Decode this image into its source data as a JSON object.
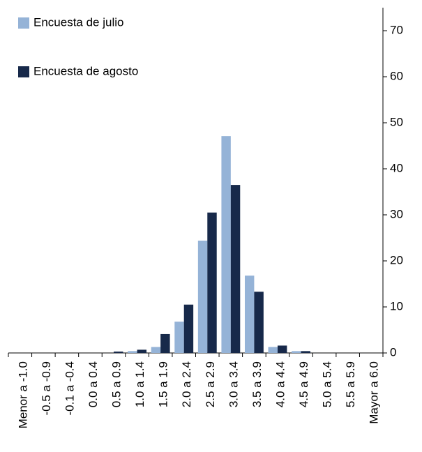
{
  "chart_data": {
    "type": "bar",
    "categories": [
      "Menor a -1.0",
      "-0.5 a -0.9",
      "-0.1 a -0.4",
      "0.0 a 0.4",
      "0.5 a 0.9",
      "1.0 a 1.4",
      "1.5 a 1.9",
      "2.0 a 2.4",
      "2.5 a 2.9",
      "3.0 a 3.4",
      "3.5 a 3.9",
      "4.0 a 4.4",
      "4.5 a 4.9",
      "5.0 a 5.4",
      "5.5 a 5.9",
      "Mayor a 6.0"
    ],
    "series": [
      {
        "name": "Encuesta de julio",
        "color": "#95b3d7",
        "values": [
          0,
          0,
          0,
          0,
          0,
          0.4,
          1.3,
          6.8,
          24.4,
          47.1,
          16.8,
          1.3,
          0.4,
          0,
          0,
          0
        ]
      },
      {
        "name": "Encuesta de agosto",
        "color": "#17294a",
        "values": [
          0,
          0,
          0,
          0,
          0.3,
          0.7,
          4.1,
          10.5,
          30.5,
          36.5,
          13.3,
          1.6,
          0.4,
          0,
          0,
          0
        ]
      }
    ],
    "ylim": [
      0,
      75
    ],
    "yticks": [
      0,
      10,
      20,
      30,
      40,
      50,
      60,
      70
    ],
    "y_axis_side": "right",
    "legend": "upper left",
    "grid": false
  }
}
